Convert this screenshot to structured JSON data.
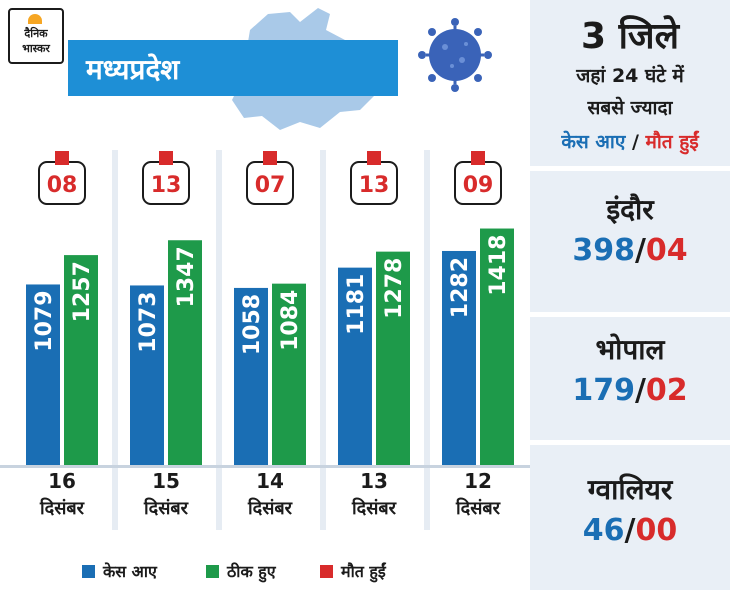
{
  "logo": {
    "line1": "दैनिक",
    "line2": "भास्कर"
  },
  "banner": {
    "title": "मध्यप्रदेश"
  },
  "colors": {
    "cases": "#1a6eb4",
    "recovered": "#1e9a4a",
    "deaths": "#d82b2b",
    "banner": "#1e8fd6"
  },
  "chart_data": {
    "type": "bar",
    "categories": [
      "16 दिसंबर",
      "15 दिसंबर",
      "14 दिसंबर",
      "13 दिसंबर",
      "12 दिसंबर"
    ],
    "series": [
      {
        "name": "केस आए",
        "values": [
          1079,
          1073,
          1058,
          1181,
          1282
        ]
      },
      {
        "name": "ठीक हुए",
        "values": [
          1257,
          1347,
          1084,
          1278,
          1418
        ]
      },
      {
        "name": "मौत हुईं",
        "values": [
          "08",
          "13",
          "07",
          "13",
          "09"
        ]
      }
    ]
  },
  "dates": [
    {
      "day": "16",
      "month": "दिसंबर"
    },
    {
      "day": "15",
      "month": "दिसंबर"
    },
    {
      "day": "14",
      "month": "दिसंबर"
    },
    {
      "day": "13",
      "month": "दिसंबर"
    },
    {
      "day": "12",
      "month": "दिसंबर"
    }
  ],
  "legend": {
    "cases": "केस आए",
    "recovered": "ठीक हुए",
    "deaths": "मौत हुईं"
  },
  "side": {
    "heading": "3 जिले",
    "line2": "जहां 24 घंटे में",
    "line3": "सबसे ज्यादा",
    "cases_label": "केस आए",
    "slash": " / ",
    "deaths_label": "मौत हुईं",
    "cities": [
      {
        "name": "इंदौर",
        "cases": "398",
        "deaths": "04"
      },
      {
        "name": "भोपाल",
        "cases": "179",
        "deaths": "02"
      },
      {
        "name": "ग्वालियर",
        "cases": "46",
        "deaths": "00"
      }
    ]
  }
}
